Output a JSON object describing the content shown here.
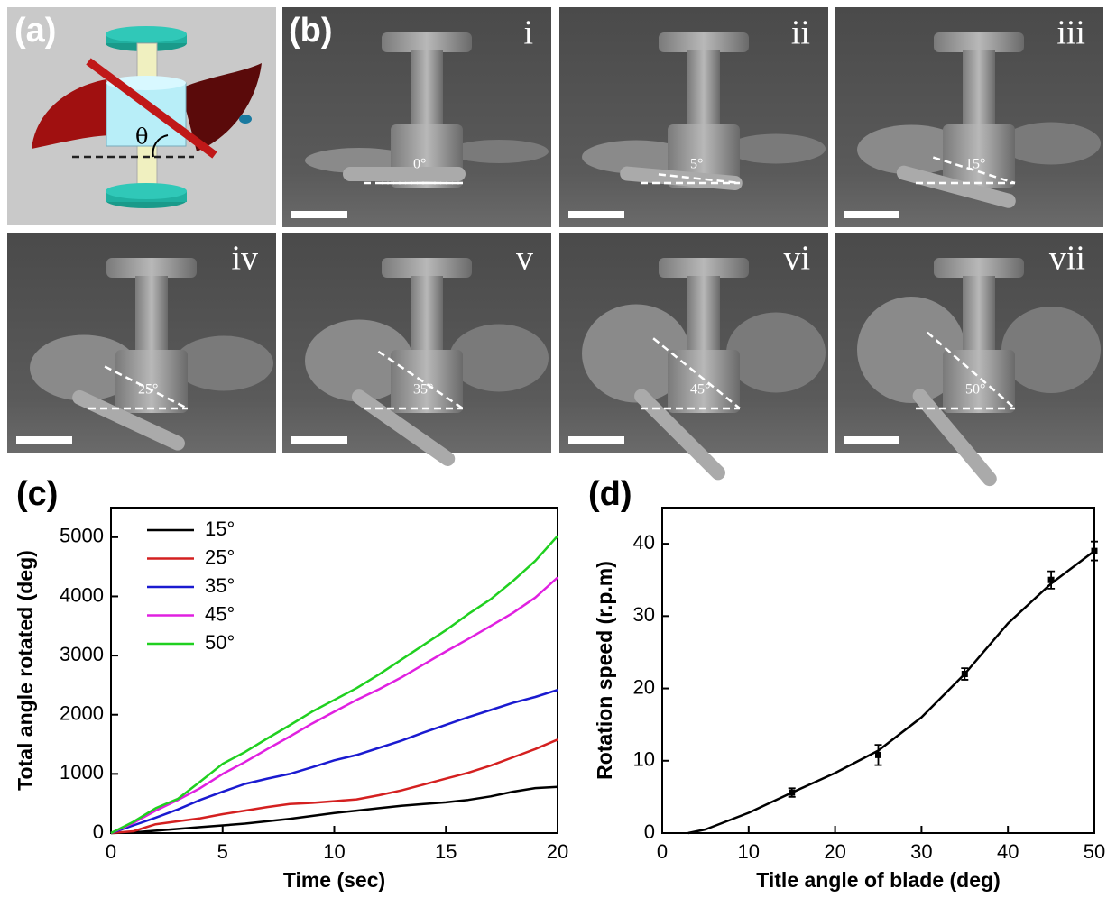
{
  "panel_a": {
    "label": "(a)",
    "angle_symbol": "θ"
  },
  "panel_b": {
    "label": "(b)",
    "images": [
      {
        "numeral": "i",
        "angle": "0°"
      },
      {
        "numeral": "ii",
        "angle": "5°"
      },
      {
        "numeral": "iii",
        "angle": "15°"
      },
      {
        "numeral": "iv",
        "angle": "25°"
      },
      {
        "numeral": "v",
        "angle": "35°"
      },
      {
        "numeral": "vi",
        "angle": "45°"
      },
      {
        "numeral": "vii",
        "angle": "50°"
      }
    ]
  },
  "chart_data": [
    {
      "type": "line",
      "label": "(c)",
      "xlabel": "Time (sec)",
      "ylabel": "Total angle rotated (deg)",
      "x": [
        0,
        1,
        2,
        3,
        4,
        5,
        6,
        7,
        8,
        9,
        10,
        11,
        12,
        13,
        14,
        15,
        16,
        17,
        18,
        19,
        20
      ],
      "series": [
        {
          "name": "15°",
          "color": "#000000",
          "values": [
            0,
            10,
            40,
            70,
            100,
            130,
            160,
            200,
            240,
            290,
            340,
            380,
            420,
            460,
            490,
            520,
            560,
            620,
            700,
            760,
            780
          ]
        },
        {
          "name": "25°",
          "color": "#d42020",
          "values": [
            0,
            30,
            150,
            200,
            250,
            320,
            380,
            440,
            490,
            510,
            540,
            570,
            640,
            720,
            820,
            920,
            1020,
            1140,
            1280,
            1420,
            1580
          ]
        },
        {
          "name": "35°",
          "color": "#1a1ad0",
          "values": [
            0,
            130,
            260,
            400,
            560,
            700,
            830,
            920,
            1000,
            1110,
            1230,
            1320,
            1440,
            1560,
            1700,
            1830,
            1960,
            2080,
            2200,
            2300,
            2420
          ]
        },
        {
          "name": "45°",
          "color": "#e020e0",
          "values": [
            0,
            170,
            380,
            560,
            760,
            1000,
            1200,
            1420,
            1630,
            1850,
            2050,
            2250,
            2430,
            2630,
            2850,
            3070,
            3280,
            3500,
            3720,
            3980,
            4320
          ]
        },
        {
          "name": "50°",
          "color": "#20d020",
          "values": [
            0,
            190,
            420,
            580,
            870,
            1170,
            1370,
            1600,
            1820,
            2050,
            2250,
            2450,
            2680,
            2930,
            3180,
            3430,
            3700,
            3950,
            4260,
            4600,
            5020
          ]
        }
      ],
      "xlim": [
        0,
        20
      ],
      "ylim": [
        0,
        5500
      ],
      "xticks": [
        0,
        5,
        10,
        15,
        20
      ],
      "yticks": [
        0,
        1000,
        2000,
        3000,
        4000,
        5000
      ],
      "legend": "upper left"
    },
    {
      "type": "errorbar",
      "label": "(d)",
      "xlabel": "Title angle of blade (deg)",
      "ylabel": "Rotation speed (r.p.m)",
      "x": [
        15,
        25,
        35,
        45,
        50
      ],
      "series": [
        {
          "color": "#000000",
          "values": [
            5.6,
            10.8,
            22,
            35,
            39
          ],
          "errors": [
            0.6,
            1.4,
            0.8,
            1.2,
            1.3
          ]
        }
      ],
      "fit": {
        "x": [
          3,
          5,
          10,
          15,
          20,
          25,
          30,
          35,
          40,
          45,
          50
        ],
        "values": [
          0,
          0.5,
          2.8,
          5.6,
          8.3,
          11.4,
          16,
          22,
          29,
          34.5,
          39
        ]
      },
      "xlim": [
        0,
        50
      ],
      "ylim": [
        0,
        45
      ],
      "xticks": [
        0,
        10,
        20,
        30,
        40,
        50
      ],
      "yticks": [
        0,
        10,
        20,
        30,
        40
      ]
    }
  ]
}
